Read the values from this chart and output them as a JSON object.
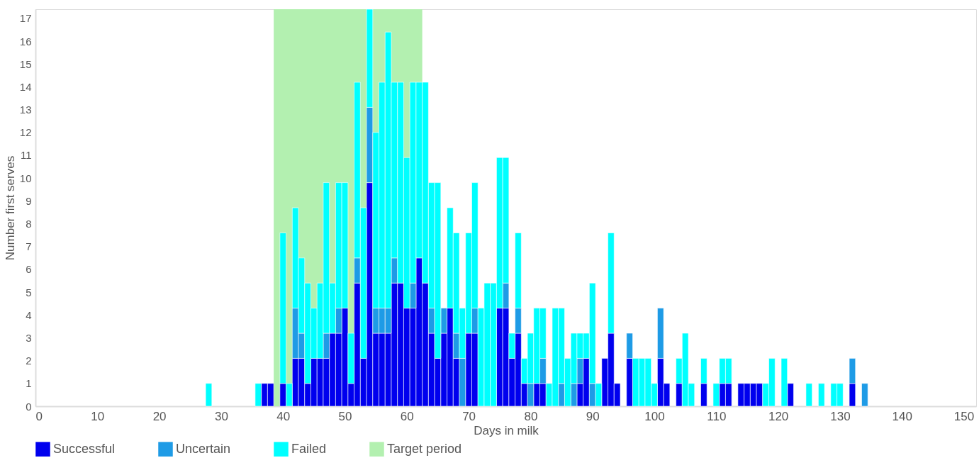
{
  "chart_data": {
    "type": "bar",
    "stacked": true,
    "xlabel": "Days in milk",
    "ylabel": "Number first serves",
    "legend": "bottom",
    "xlim": [
      0,
      152
    ],
    "xticks": [
      0,
      10,
      20,
      30,
      40,
      50,
      60,
      70,
      80,
      90,
      100,
      110,
      120,
      130,
      140,
      150
    ],
    "ylim": [
      0,
      17.4
    ],
    "yticks": [
      0,
      1,
      2,
      3,
      4,
      5,
      6,
      7,
      8,
      9,
      10,
      11,
      12,
      13,
      14,
      15,
      16,
      17
    ],
    "x": [
      28,
      36,
      37,
      38,
      40,
      41,
      42,
      43,
      44,
      45,
      46,
      47,
      48,
      49,
      50,
      51,
      52,
      53,
      54,
      55,
      56,
      57,
      58,
      59,
      60,
      61,
      62,
      63,
      64,
      65,
      66,
      67,
      68,
      69,
      70,
      71,
      72,
      73,
      74,
      75,
      76,
      77,
      78,
      79,
      80,
      81,
      82,
      83,
      84,
      85,
      86,
      87,
      88,
      89,
      90,
      91,
      92,
      93,
      94,
      96,
      97,
      98,
      99,
      100,
      101,
      102,
      104,
      105,
      106,
      108,
      110,
      111,
      112,
      114,
      115,
      116,
      117,
      118,
      119,
      121,
      122,
      125,
      127,
      129,
      130,
      132,
      134
    ],
    "series": [
      {
        "name": "Successful",
        "color": "#0000ee",
        "values": [
          null,
          null,
          1.0,
          1.0,
          1.0,
          null,
          2.1,
          2.1,
          1.0,
          2.1,
          2.1,
          2.1,
          3.2,
          3.2,
          4.3,
          1.0,
          5.4,
          2.1,
          9.8,
          3.2,
          3.2,
          3.2,
          5.4,
          5.4,
          4.3,
          4.3,
          6.5,
          5.4,
          3.2,
          2.1,
          3.2,
          4.3,
          2.1,
          null,
          3.2,
          3.2,
          null,
          null,
          null,
          4.3,
          4.3,
          2.1,
          3.2,
          1.0,
          null,
          1.0,
          1.0,
          null,
          null,
          null,
          null,
          null,
          1.0,
          2.1,
          null,
          null,
          2.1,
          3.2,
          1.0,
          2.1,
          null,
          null,
          null,
          null,
          2.1,
          1.0,
          1.0,
          null,
          null,
          1.0,
          null,
          1.0,
          1.0,
          1.0,
          1.0,
          1.0,
          1.0,
          null,
          null,
          null,
          1.0,
          null,
          null,
          null,
          null,
          1.0,
          null
        ]
      },
      {
        "name": "Uncertain",
        "color": "#1e9be6",
        "values": [
          null,
          null,
          null,
          null,
          null,
          null,
          2.2,
          1.1,
          null,
          null,
          null,
          1.1,
          null,
          1.1,
          null,
          null,
          1.1,
          null,
          3.3,
          1.1,
          1.1,
          1.1,
          1.1,
          null,
          null,
          1.1,
          null,
          null,
          1.1,
          null,
          1.1,
          null,
          1.1,
          2.1,
          null,
          1.1,
          null,
          null,
          null,
          null,
          1.1,
          null,
          1.1,
          null,
          1.0,
          null,
          1.1,
          null,
          null,
          1.0,
          null,
          1.0,
          1.1,
          null,
          1.0,
          null,
          null,
          null,
          null,
          1.1,
          null,
          null,
          null,
          null,
          2.2,
          null,
          null,
          null,
          null,
          null,
          null,
          null,
          null,
          null,
          null,
          null,
          null,
          null,
          null,
          null,
          null,
          null,
          null,
          null,
          null,
          1.1,
          1.0
        ]
      },
      {
        "name": "Failed",
        "color": "#00ffff",
        "values": [
          1.0,
          1.0,
          null,
          null,
          6.6,
          1.0,
          4.4,
          3.3,
          4.4,
          2.2,
          3.3,
          6.6,
          2.2,
          5.5,
          5.5,
          2.2,
          7.7,
          6.6,
          4.3,
          7.7,
          9.9,
          12.1,
          7.7,
          8.8,
          6.6,
          8.8,
          7.7,
          8.8,
          5.5,
          7.7,
          null,
          4.4,
          4.4,
          2.2,
          4.4,
          5.5,
          4.3,
          5.4,
          5.4,
          6.6,
          5.5,
          1.1,
          3.3,
          1.1,
          2.2,
          3.3,
          2.2,
          1.0,
          4.3,
          3.3,
          2.1,
          2.2,
          1.1,
          1.1,
          4.4,
          1.0,
          null,
          4.4,
          null,
          null,
          2.1,
          2.1,
          2.1,
          1.0,
          null,
          null,
          1.1,
          3.2,
          1.0,
          1.1,
          1.0,
          1.1,
          1.1,
          null,
          null,
          null,
          null,
          1.0,
          2.1,
          2.1,
          null,
          1.0,
          1.0,
          1.0,
          1.0,
          null,
          null
        ]
      }
    ],
    "bands": [
      {
        "axis": "x",
        "from": 38.5,
        "to": 62.5,
        "label": "Target period",
        "color": "#b3f0b0"
      }
    ]
  }
}
